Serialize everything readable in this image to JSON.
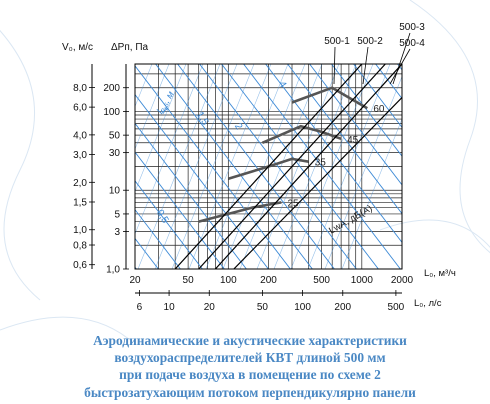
{
  "chart_data": {
    "type": "line",
    "title": "",
    "left_axes": {
      "v0_label": "V₀, м/с",
      "v0_ticks": [
        "8,0",
        "6,0",
        "4,0",
        "3,0",
        "2,0",
        "1,5",
        "1,0",
        "0,8",
        "0,6"
      ],
      "dp_label": "ΔPп, Па",
      "dp_ticks": [
        "200",
        "100",
        "50",
        "30",
        "10",
        "5",
        "3",
        "1,0"
      ],
      "dp_values": [
        200,
        100,
        50,
        30,
        10,
        5,
        3,
        1
      ],
      "dp_range": [
        1,
        400
      ],
      "v0_values": [
        8,
        6,
        4,
        3,
        2,
        1.5,
        1,
        0.8,
        0.6
      ]
    },
    "bottom_axes": {
      "l_m3h_label": "L₀, м³/ч",
      "l_m3h_ticks": [
        "20",
        "50",
        "100",
        "200",
        "500",
        "1000",
        "2000"
      ],
      "l_m3h_values": [
        20,
        50,
        100,
        200,
        500,
        1000,
        2000
      ],
      "l_ls_label": "L₀, л/с",
      "l_ls_ticks": [
        "6",
        "10",
        "20",
        "50",
        "100",
        "200",
        "500"
      ],
      "l_ls_values": [
        6,
        10,
        20,
        50,
        100,
        200,
        500
      ],
      "x_range": [
        20,
        2000
      ]
    },
    "series": [
      {
        "name": "500-1",
        "points": [
          [
            40,
            1
          ],
          [
            1000,
            400
          ]
        ]
      },
      {
        "name": "500-2",
        "points": [
          [
            60,
            1
          ],
          [
            1500,
            400
          ]
        ]
      },
      {
        "name": "500-3",
        "points": [
          [
            80,
            1
          ],
          [
            2000,
            400
          ]
        ]
      },
      {
        "name": "500-4",
        "points": [
          [
            110,
            1
          ],
          [
            2000,
            150
          ]
        ]
      }
    ],
    "noise_curves": [
      {
        "label": "25",
        "points": [
          [
            60,
            4
          ],
          [
            100,
            5
          ],
          [
            150,
            6
          ],
          [
            250,
            7
          ]
        ]
      },
      {
        "label": "35",
        "points": [
          [
            100,
            14
          ],
          [
            200,
            20
          ],
          [
            300,
            25
          ],
          [
            400,
            23
          ]
        ]
      },
      {
        "label": "45",
        "points": [
          [
            180,
            40
          ],
          [
            350,
            65
          ],
          [
            500,
            55
          ],
          [
            700,
            45
          ]
        ]
      },
      {
        "label": "60",
        "points": [
          [
            300,
            130
          ],
          [
            600,
            200
          ],
          [
            800,
            150
          ],
          [
            1100,
            110
          ]
        ]
      }
    ],
    "throw_lines": [
      {
        "label": "0,5",
        "type": "blue"
      },
      {
        "label": "1",
        "type": "blue"
      },
      {
        "label": "1,5",
        "type": "blue"
      },
      {
        "label": "2",
        "type": "blue"
      },
      {
        "label": "4",
        "type": "blue"
      }
    ],
    "annotations": {
      "l_label": "l₀,₅, м",
      "lwa_label": "LwA, дБ(А)"
    },
    "grid": true
  },
  "caption_lines": [
    "Аэродинамические и акустические характеристики",
    "воздухораспределителей КВТ длиной 500 мм",
    "при подаче воздуха в помещение по схеме 2",
    "быстрозатухающим потоком перпендикулярно панели"
  ],
  "colors": {
    "caption": "#4a88c4",
    "blue_lines": "#3d8ad6",
    "grid": "#111111",
    "noise": "#555555"
  }
}
